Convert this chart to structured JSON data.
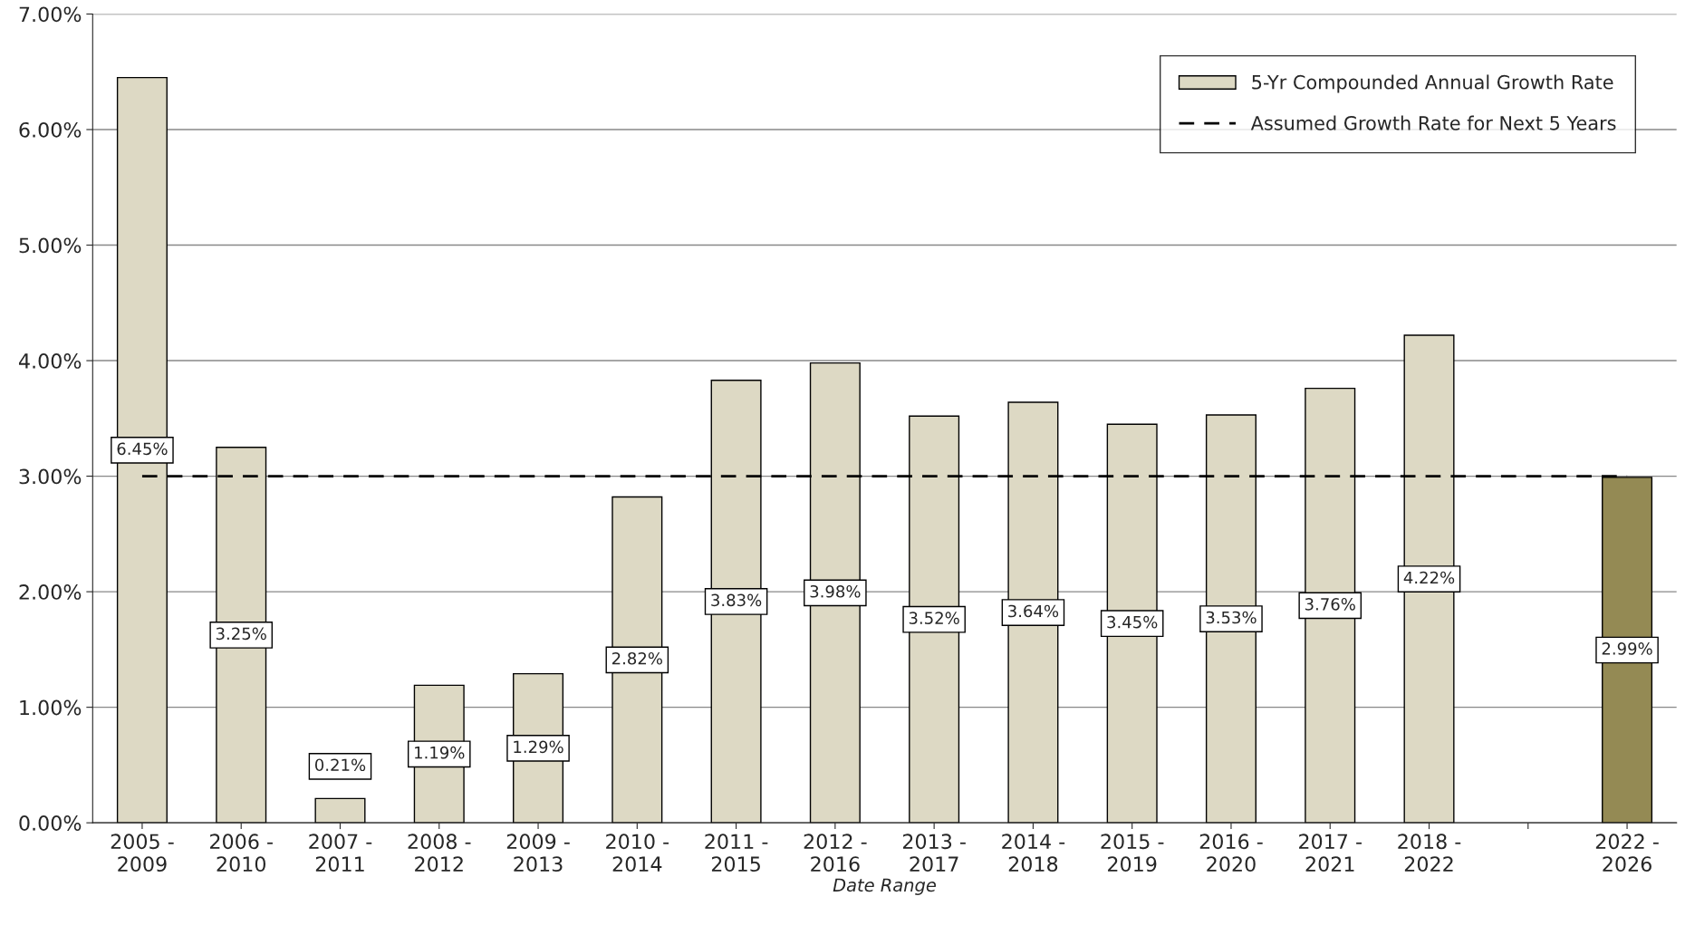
{
  "chart_data": {
    "type": "bar",
    "xlabel": "Date Range",
    "categories": [
      "2005 -\n2009",
      "2006 -\n2010",
      "2007 -\n2011",
      "2008 -\n2012",
      "2009 -\n2013",
      "2010 -\n2014",
      "2011 -\n2015",
      "2012 -\n2016",
      "2013 -\n2017",
      "2014 -\n2018",
      "2015 -\n2019",
      "2016 -\n2020",
      "2017 -\n2021",
      "2018 -\n2022",
      null,
      "2022 -\n2026"
    ],
    "series": [
      {
        "name": "5-Yr Compounded Annual Growth Rate",
        "color": "#ddd9c4",
        "colors": [
          "#ddd9c4",
          "#ddd9c4",
          "#ddd9c4",
          "#ddd9c4",
          "#ddd9c4",
          "#ddd9c4",
          "#ddd9c4",
          "#ddd9c4",
          "#ddd9c4",
          "#ddd9c4",
          "#ddd9c4",
          "#ddd9c4",
          "#ddd9c4",
          "#ddd9c4",
          "#ddd9c4",
          "#948a54"
        ],
        "values": [
          6.45,
          3.25,
          0.21,
          1.19,
          1.29,
          2.82,
          3.83,
          3.98,
          3.52,
          3.64,
          3.45,
          3.53,
          3.76,
          4.22,
          null,
          2.99
        ],
        "value_labels": [
          "6.45%",
          "3.25%",
          "0.21%",
          "1.19%",
          "1.29%",
          "2.82%",
          "3.83%",
          "3.98%",
          "3.52%",
          "3.64%",
          "3.45%",
          "3.53%",
          "3.76%",
          "4.22%",
          null,
          "2.99%"
        ]
      }
    ],
    "ref_lines": [
      {
        "axis": "y",
        "value": 3.0,
        "label": "Assumed Growth Rate for Next 5 Years",
        "color": "#000000",
        "line_style": "dashed"
      }
    ],
    "ylim": [
      0,
      7
    ],
    "yticks": [
      {
        "value": 0,
        "label": "0.00%"
      },
      {
        "value": 1,
        "label": "1.00%"
      },
      {
        "value": 2,
        "label": "2.00%"
      },
      {
        "value": 3,
        "label": "3.00%"
      },
      {
        "value": 4,
        "label": "4.00%"
      },
      {
        "value": 5,
        "label": "5.00%"
      },
      {
        "value": 6,
        "label": "6.00%"
      },
      {
        "value": 7,
        "label": "7.00%"
      }
    ],
    "grid": "y",
    "legend": "top right"
  }
}
